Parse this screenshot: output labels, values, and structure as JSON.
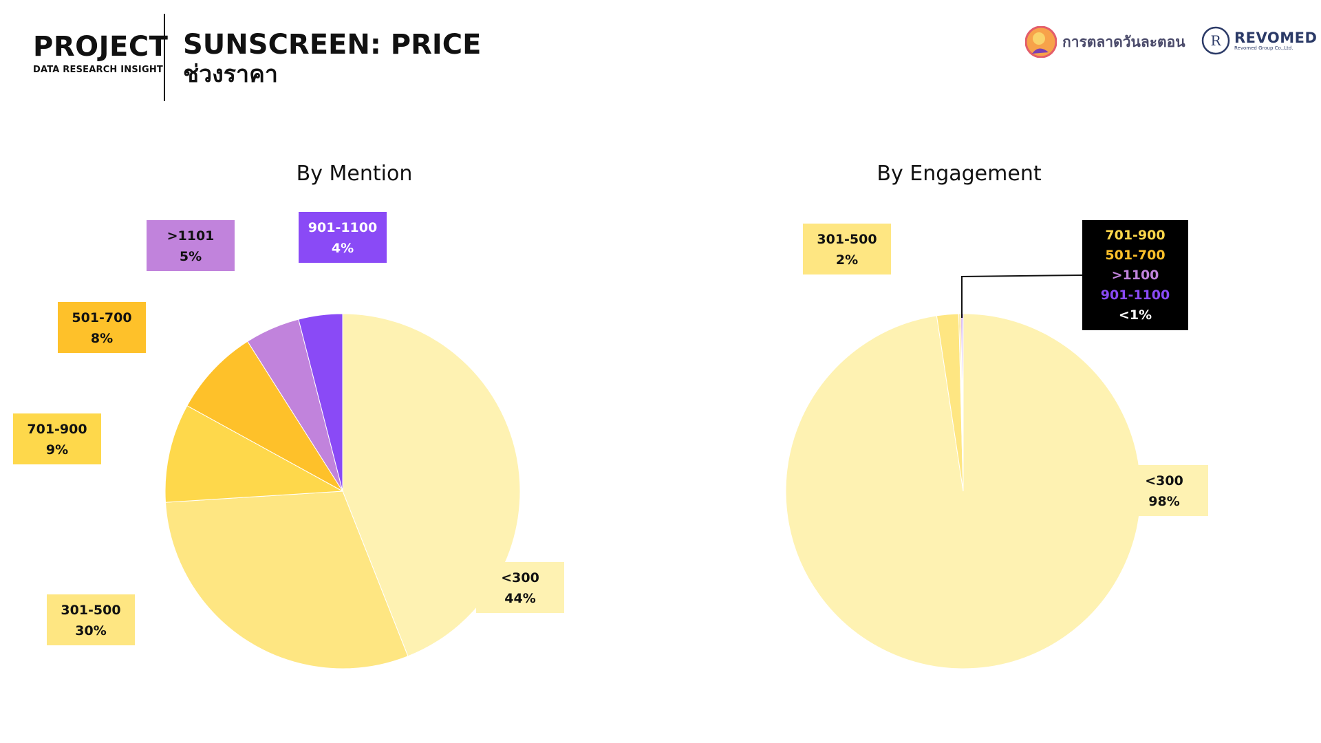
{
  "header": {
    "brand_title": "PROJECT",
    "brand_subtitle": "DATA RESEARCH INSIGHT",
    "title": "SUNSCREEN: PRICE",
    "subtitle": "ช่วงราคา"
  },
  "logos": {
    "partner_name": "การตลาดวันละตอน",
    "company_name": "REVOMED",
    "company_tagline": "Revomed Group Co.,Ltd."
  },
  "chart_data": [
    {
      "type": "pie",
      "title": "By Mention",
      "slices": [
        {
          "label": "<300",
          "value": 44,
          "display": "44%",
          "color": "#FEF2B2",
          "label_color": "#FEF2B2"
        },
        {
          "label": "301-500",
          "value": 30,
          "display": "30%",
          "color": "#FEE682",
          "label_color": "#FEE682"
        },
        {
          "label": "701-900",
          "value": 9,
          "display": "9%",
          "color": "#FED84B",
          "label_color": "#FED84B"
        },
        {
          "label": "501-700",
          "value": 8,
          "display": "8%",
          "color": "#FEC12A",
          "label_color": "#FEC12A"
        },
        {
          "label": ">1101",
          "value": 5,
          "display": "5%",
          "color": "#C183DC",
          "label_color": "#C183DC"
        },
        {
          "label": "901-1100",
          "value": 4,
          "display": "4%",
          "color": "#8A4AF6",
          "label_color": "#8A4AF6"
        }
      ]
    },
    {
      "type": "pie",
      "title": "By Engagement",
      "slices": [
        {
          "label": "<300",
          "value": 98,
          "display": "98%",
          "color": "#FEF2B2"
        },
        {
          "label": "301-500",
          "value": 2,
          "display": "2%",
          "color": "#FEE682"
        },
        {
          "label": "701-900",
          "value": 0.1,
          "color": "#FED84B"
        },
        {
          "label": "501-700",
          "value": 0.1,
          "color": "#FEC12A"
        },
        {
          "label": ">1100",
          "value": 0.1,
          "color": "#C183DC"
        },
        {
          "label": "901-1100",
          "value": 0.1,
          "color": "#8A4AF6"
        }
      ],
      "small_slices_callout": {
        "entries": [
          {
            "text": "701-900",
            "color": "#FED84B"
          },
          {
            "text": "501-700",
            "color": "#FEC12A"
          },
          {
            "text": ">1100",
            "color": "#C183DC"
          },
          {
            "text": "901-1100",
            "color": "#8A4AF6"
          },
          {
            "text": "<1%",
            "color": "#FFFFFF"
          }
        ],
        "background": "#000000"
      }
    }
  ]
}
